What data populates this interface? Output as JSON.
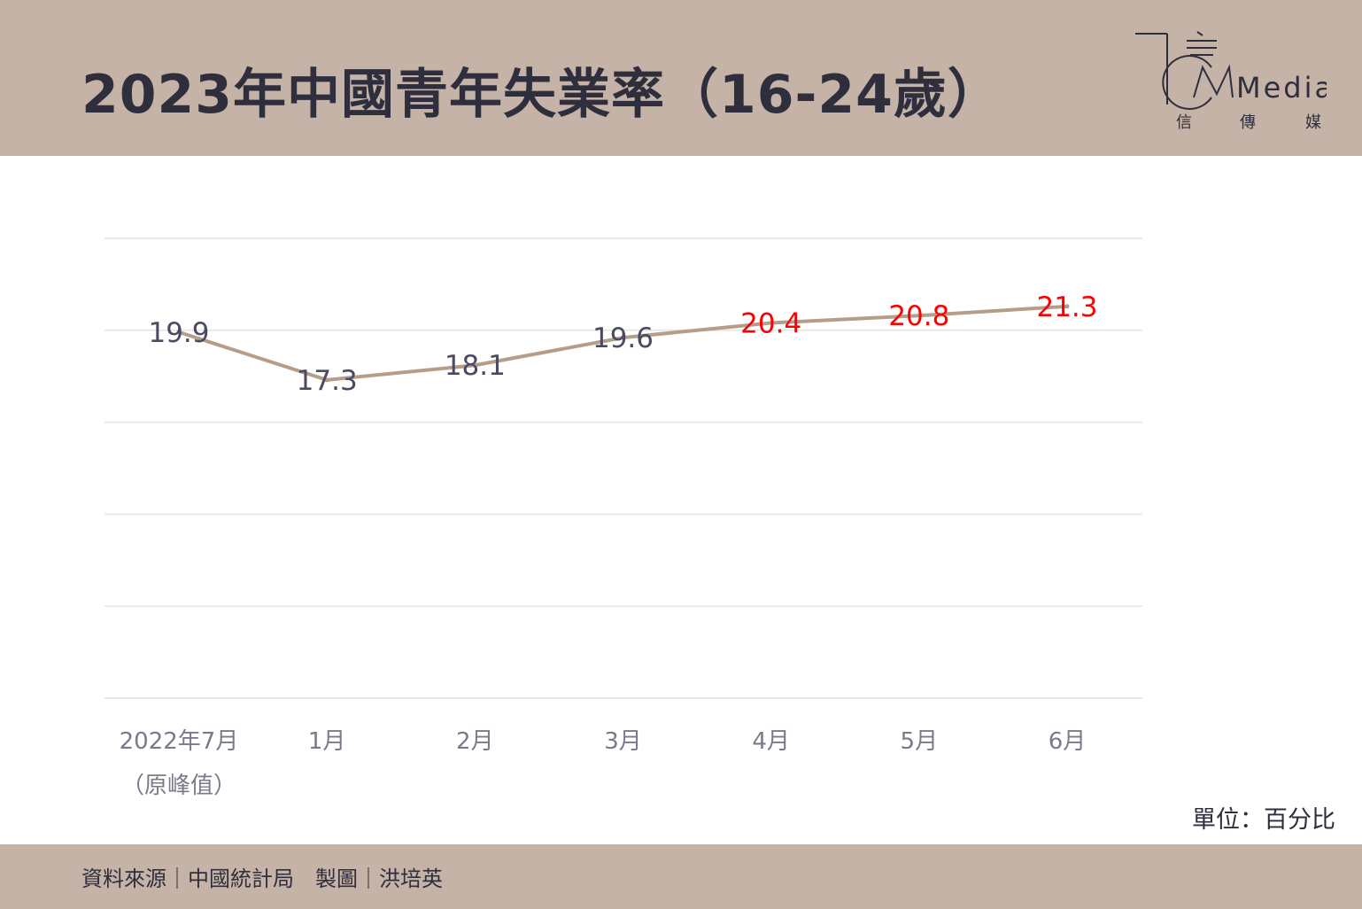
{
  "header": {
    "title": "2023年中國青年失業率（16-24歲）",
    "logo_text": "Media",
    "logo_subtitle": [
      "信",
      "傳",
      "媒"
    ]
  },
  "footer": {
    "source": "資料來源｜中國統計局　製圖｜洪培英"
  },
  "unit_label": "單位：百分比",
  "colors": {
    "band": "#c4b3a6",
    "line": "#b49e8a",
    "label_default": "#4a4a62",
    "label_highlight": "#ff0000",
    "axis_text": "#7a7a8c",
    "grid": "#e8e8e8"
  },
  "chart_data": {
    "type": "line",
    "title": "2023年中國青年失業率（16-24歲）",
    "categories": [
      "2022年7月",
      "1月",
      "2月",
      "3月",
      "4月",
      "5月",
      "6月"
    ],
    "category_sublabels": [
      "（原峰值）",
      "",
      "",
      "",
      "",
      "",
      ""
    ],
    "series": [
      {
        "values": [
          19.9,
          17.3,
          18.1,
          19.6,
          20.4,
          20.8,
          21.3
        ],
        "labels": [
          "19.9",
          "17.3",
          "18.1",
          "19.6",
          "20.4",
          "20.8",
          "21.3"
        ],
        "highlighted": [
          false,
          false,
          false,
          false,
          true,
          true,
          true
        ]
      }
    ],
    "ylim": [
      0,
      25
    ],
    "grid": true,
    "legend": "none",
    "xlabel": "",
    "ylabel": ""
  }
}
